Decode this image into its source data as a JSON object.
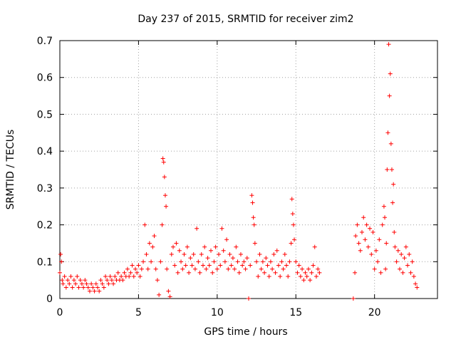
{
  "chart_data": {
    "type": "scatter",
    "title": "Day 237 of 2015, SRMTID for receiver zim2",
    "xlabel": "GPS time / hours",
    "ylabel": "SRMTID / TECUs",
    "xlim": [
      0,
      24
    ],
    "ylim": [
      0,
      0.7
    ],
    "xticks": [
      0,
      5,
      10,
      15,
      20
    ],
    "yticks": [
      0,
      0.1,
      0.2,
      0.3,
      0.4,
      0.5,
      0.6,
      0.7
    ],
    "ytick_labels": [
      "0",
      "0.1",
      "0.2",
      "0.3",
      "0.4",
      "0.5",
      "0.6",
      "0.7"
    ],
    "grid": true,
    "marker": "+",
    "color": "#ff0000",
    "series": [
      {
        "name": "SRMTID",
        "points": [
          [
            0.0,
            0.07
          ],
          [
            0.05,
            0.12
          ],
          [
            0.1,
            0.1
          ],
          [
            0.15,
            0.05
          ],
          [
            0.2,
            0.04
          ],
          [
            0.3,
            0.06
          ],
          [
            0.4,
            0.03
          ],
          [
            0.5,
            0.05
          ],
          [
            0.6,
            0.04
          ],
          [
            0.7,
            0.06
          ],
          [
            0.8,
            0.03
          ],
          [
            0.9,
            0.05
          ],
          [
            1.0,
            0.04
          ],
          [
            1.1,
            0.06
          ],
          [
            1.2,
            0.03
          ],
          [
            1.3,
            0.05
          ],
          [
            1.4,
            0.04
          ],
          [
            1.5,
            0.03
          ],
          [
            1.6,
            0.05
          ],
          [
            1.7,
            0.04
          ],
          [
            1.8,
            0.03
          ],
          [
            1.9,
            0.02
          ],
          [
            2.0,
            0.04
          ],
          [
            2.1,
            0.03
          ],
          [
            2.2,
            0.02
          ],
          [
            2.3,
            0.04
          ],
          [
            2.4,
            0.03
          ],
          [
            2.5,
            0.02
          ],
          [
            2.6,
            0.05
          ],
          [
            2.7,
            0.04
          ],
          [
            2.8,
            0.03
          ],
          [
            2.9,
            0.06
          ],
          [
            3.0,
            0.05
          ],
          [
            3.1,
            0.04
          ],
          [
            3.2,
            0.06
          ],
          [
            3.3,
            0.05
          ],
          [
            3.4,
            0.04
          ],
          [
            3.5,
            0.06
          ],
          [
            3.6,
            0.05
          ],
          [
            3.7,
            0.07
          ],
          [
            3.8,
            0.05
          ],
          [
            3.9,
            0.06
          ],
          [
            4.0,
            0.05
          ],
          [
            4.1,
            0.07
          ],
          [
            4.2,
            0.06
          ],
          [
            4.3,
            0.08
          ],
          [
            4.4,
            0.06
          ],
          [
            4.5,
            0.07
          ],
          [
            4.6,
            0.09
          ],
          [
            4.7,
            0.06
          ],
          [
            4.8,
            0.08
          ],
          [
            4.9,
            0.07
          ],
          [
            5.0,
            0.09
          ],
          [
            5.1,
            0.06
          ],
          [
            5.2,
            0.08
          ],
          [
            5.3,
            0.1
          ],
          [
            5.4,
            0.2
          ],
          [
            5.5,
            0.12
          ],
          [
            5.6,
            0.08
          ],
          [
            5.7,
            0.15
          ],
          [
            5.8,
            0.1
          ],
          [
            5.9,
            0.14
          ],
          [
            6.0,
            0.17
          ],
          [
            6.1,
            0.08
          ],
          [
            6.2,
            0.05
          ],
          [
            6.3,
            0.01
          ],
          [
            6.4,
            0.1
          ],
          [
            6.5,
            0.2
          ],
          [
            6.55,
            0.38
          ],
          [
            6.6,
            0.37
          ],
          [
            6.65,
            0.33
          ],
          [
            6.7,
            0.28
          ],
          [
            6.75,
            0.25
          ],
          [
            6.8,
            0.08
          ],
          [
            6.9,
            0.02
          ],
          [
            7.0,
            0.005
          ],
          [
            7.1,
            0.12
          ],
          [
            7.2,
            0.14
          ],
          [
            7.3,
            0.09
          ],
          [
            7.4,
            0.15
          ],
          [
            7.5,
            0.07
          ],
          [
            7.6,
            0.13
          ],
          [
            7.7,
            0.1
          ],
          [
            7.8,
            0.08
          ],
          [
            7.9,
            0.12
          ],
          [
            8.0,
            0.09
          ],
          [
            8.1,
            0.14
          ],
          [
            8.2,
            0.07
          ],
          [
            8.3,
            0.11
          ],
          [
            8.4,
            0.09
          ],
          [
            8.5,
            0.12
          ],
          [
            8.6,
            0.08
          ],
          [
            8.7,
            0.19
          ],
          [
            8.8,
            0.1
          ],
          [
            8.9,
            0.07
          ],
          [
            9.0,
            0.12
          ],
          [
            9.1,
            0.09
          ],
          [
            9.2,
            0.14
          ],
          [
            9.3,
            0.08
          ],
          [
            9.4,
            0.11
          ],
          [
            9.5,
            0.09
          ],
          [
            9.6,
            0.13
          ],
          [
            9.7,
            0.07
          ],
          [
            9.8,
            0.1
          ],
          [
            9.9,
            0.14
          ],
          [
            10.0,
            0.08
          ],
          [
            10.1,
            0.12
          ],
          [
            10.2,
            0.09
          ],
          [
            10.3,
            0.19
          ],
          [
            10.4,
            0.13
          ],
          [
            10.5,
            0.1
          ],
          [
            10.6,
            0.16
          ],
          [
            10.7,
            0.08
          ],
          [
            10.8,
            0.12
          ],
          [
            10.9,
            0.09
          ],
          [
            11.0,
            0.11
          ],
          [
            11.1,
            0.08
          ],
          [
            11.2,
            0.14
          ],
          [
            11.3,
            0.1
          ],
          [
            11.4,
            0.07
          ],
          [
            11.5,
            0.12
          ],
          [
            11.6,
            0.09
          ],
          [
            11.7,
            0.1
          ],
          [
            11.8,
            0.08
          ],
          [
            11.9,
            0.11
          ],
          [
            12.0,
            0.0
          ],
          [
            12.1,
            0.09
          ],
          [
            12.2,
            0.28
          ],
          [
            12.25,
            0.26
          ],
          [
            12.3,
            0.22
          ],
          [
            12.35,
            0.2
          ],
          [
            12.4,
            0.15
          ],
          [
            12.5,
            0.1
          ],
          [
            12.6,
            0.06
          ],
          [
            12.7,
            0.12
          ],
          [
            12.8,
            0.08
          ],
          [
            12.9,
            0.1
          ],
          [
            13.0,
            0.07
          ],
          [
            13.1,
            0.11
          ],
          [
            13.2,
            0.09
          ],
          [
            13.3,
            0.06
          ],
          [
            13.4,
            0.1
          ],
          [
            13.5,
            0.08
          ],
          [
            13.6,
            0.12
          ],
          [
            13.7,
            0.07
          ],
          [
            13.8,
            0.13
          ],
          [
            13.9,
            0.09
          ],
          [
            14.0,
            0.06
          ],
          [
            14.1,
            0.1
          ],
          [
            14.2,
            0.08
          ],
          [
            14.3,
            0.12
          ],
          [
            14.4,
            0.09
          ],
          [
            14.5,
            0.06
          ],
          [
            14.6,
            0.1
          ],
          [
            14.7,
            0.15
          ],
          [
            14.75,
            0.27
          ],
          [
            14.8,
            0.23
          ],
          [
            14.85,
            0.2
          ],
          [
            14.9,
            0.16
          ],
          [
            15.0,
            0.1
          ],
          [
            15.1,
            0.07
          ],
          [
            15.2,
            0.09
          ],
          [
            15.3,
            0.06
          ],
          [
            15.4,
            0.08
          ],
          [
            15.5,
            0.05
          ],
          [
            15.6,
            0.07
          ],
          [
            15.7,
            0.06
          ],
          [
            15.8,
            0.08
          ],
          [
            15.9,
            0.05
          ],
          [
            16.0,
            0.07
          ],
          [
            16.1,
            0.09
          ],
          [
            16.2,
            0.14
          ],
          [
            16.3,
            0.06
          ],
          [
            16.4,
            0.08
          ],
          [
            16.5,
            0.07
          ],
          [
            18.65,
            0.0
          ],
          [
            18.75,
            0.07
          ],
          [
            18.8,
            0.17
          ],
          [
            18.9,
            0.2
          ],
          [
            19.0,
            0.15
          ],
          [
            19.1,
            0.13
          ],
          [
            19.2,
            0.18
          ],
          [
            19.3,
            0.22
          ],
          [
            19.4,
            0.16
          ],
          [
            19.5,
            0.2
          ],
          [
            19.6,
            0.14
          ],
          [
            19.7,
            0.19
          ],
          [
            19.8,
            0.12
          ],
          [
            19.9,
            0.18
          ],
          [
            20.0,
            0.08
          ],
          [
            20.1,
            0.13
          ],
          [
            20.2,
            0.1
          ],
          [
            20.3,
            0.16
          ],
          [
            20.4,
            0.07
          ],
          [
            20.5,
            0.2
          ],
          [
            20.6,
            0.25
          ],
          [
            20.65,
            0.22
          ],
          [
            20.7,
            0.08
          ],
          [
            20.75,
            0.15
          ],
          [
            20.8,
            0.35
          ],
          [
            20.85,
            0.45
          ],
          [
            20.9,
            0.69
          ],
          [
            20.95,
            0.55
          ],
          [
            21.0,
            0.61
          ],
          [
            21.05,
            0.42
          ],
          [
            21.1,
            0.35
          ],
          [
            21.15,
            0.26
          ],
          [
            21.2,
            0.31
          ],
          [
            21.25,
            0.18
          ],
          [
            21.3,
            0.14
          ],
          [
            21.4,
            0.1
          ],
          [
            21.5,
            0.13
          ],
          [
            21.6,
            0.08
          ],
          [
            21.7,
            0.12
          ],
          [
            21.8,
            0.07
          ],
          [
            21.9,
            0.11
          ],
          [
            22.0,
            0.14
          ],
          [
            22.1,
            0.09
          ],
          [
            22.2,
            0.12
          ],
          [
            22.3,
            0.07
          ],
          [
            22.4,
            0.1
          ],
          [
            22.5,
            0.06
          ],
          [
            22.6,
            0.04
          ],
          [
            22.7,
            0.03
          ]
        ]
      }
    ]
  }
}
